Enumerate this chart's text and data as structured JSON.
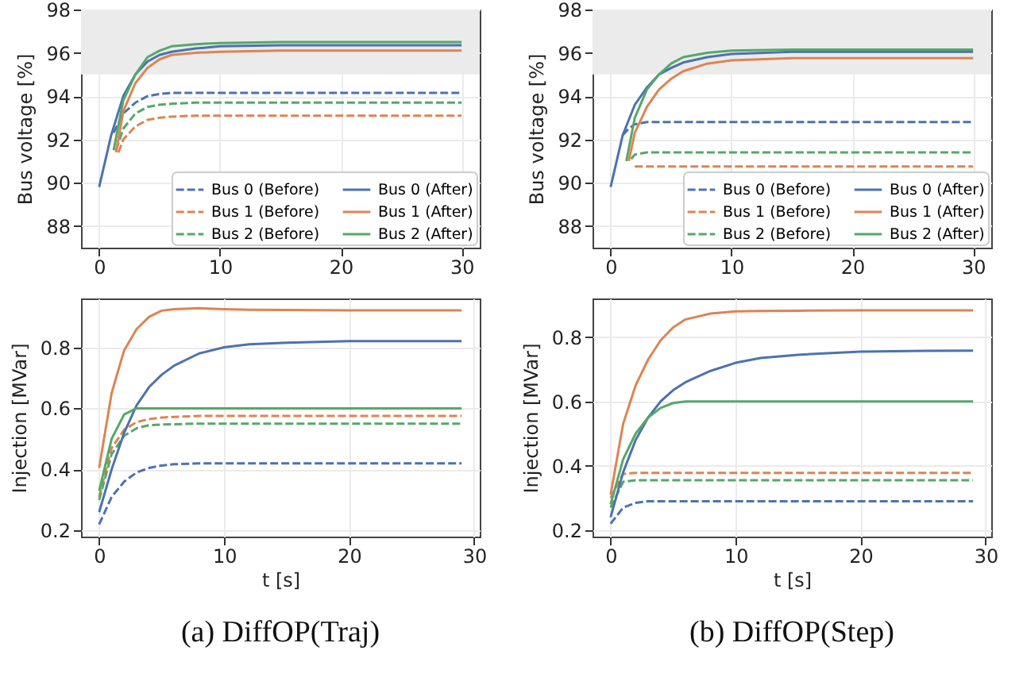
{
  "chart_data": [
    {
      "type": "line",
      "ylabel": "Bus voltage [%]",
      "xlim": [
        -1.5,
        31.5
      ],
      "xticks": [
        0,
        10,
        20,
        30
      ],
      "ylim": [
        87,
        98
      ],
      "yticks": [
        88,
        90,
        92,
        94,
        96,
        98
      ],
      "grid": true,
      "legend": "bottom right",
      "bands": [
        {
          "axis": "y",
          "from": 95,
          "to": 98,
          "color": "#ebebeb"
        }
      ],
      "series": [
        {
          "name": "Bus 0 (Before)",
          "color": "#4c72b0",
          "line_style": "dashed",
          "x": [
            1.2,
            2,
            3,
            4,
            5,
            6,
            8,
            10,
            15,
            20,
            25,
            30
          ],
          "values": [
            92.3,
            93.2,
            93.7,
            94.0,
            94.1,
            94.15,
            94.15,
            94.15,
            94.15,
            94.15,
            94.15,
            94.15
          ]
        },
        {
          "name": "Bus 1 (Before)",
          "color": "#dd8452",
          "line_style": "dashed",
          "x": [
            1.6,
            2,
            3,
            4,
            5,
            6,
            8,
            10,
            15,
            20,
            25,
            30
          ],
          "values": [
            91.4,
            92.0,
            92.6,
            92.9,
            93.0,
            93.05,
            93.1,
            93.1,
            93.1,
            93.1,
            93.1,
            93.1
          ]
        },
        {
          "name": "Bus 2 (Before)",
          "color": "#55a868",
          "line_style": "dashed",
          "x": [
            1.4,
            2,
            3,
            4,
            5,
            6,
            8,
            10,
            15,
            20,
            25,
            30
          ],
          "values": [
            91.5,
            92.5,
            93.2,
            93.5,
            93.6,
            93.65,
            93.7,
            93.7,
            93.7,
            93.7,
            93.7,
            93.7
          ]
        },
        {
          "name": "Bus 0 (After)",
          "color": "#4c72b0",
          "line_style": "solid",
          "x": [
            0,
            1,
            2,
            3,
            4,
            5,
            6,
            8,
            10,
            15,
            20,
            25,
            30
          ],
          "values": [
            89.8,
            92.2,
            94.0,
            95.0,
            95.6,
            95.9,
            96.05,
            96.2,
            96.3,
            96.35,
            96.35,
            96.35,
            96.35
          ]
        },
        {
          "name": "Bus 1 (After)",
          "color": "#dd8452",
          "line_style": "solid",
          "x": [
            1.4,
            2,
            3,
            4,
            5,
            6,
            8,
            10,
            15,
            20,
            25,
            30
          ],
          "values": [
            91.4,
            93.3,
            94.6,
            95.3,
            95.7,
            95.9,
            96.0,
            96.05,
            96.1,
            96.1,
            96.1,
            96.1
          ]
        },
        {
          "name": "Bus 2 (After)",
          "color": "#55a868",
          "line_style": "solid",
          "x": [
            1.2,
            2,
            3,
            4,
            5,
            6,
            8,
            10,
            15,
            20,
            25,
            30
          ],
          "values": [
            91.5,
            93.8,
            95.0,
            95.8,
            96.1,
            96.3,
            96.4,
            96.45,
            96.5,
            96.5,
            96.5,
            96.5
          ]
        }
      ]
    },
    {
      "type": "line",
      "ylabel": "Bus voltage [%]",
      "xlim": [
        -1.5,
        31.5
      ],
      "xticks": [
        0,
        10,
        20,
        30
      ],
      "ylim": [
        87,
        98
      ],
      "yticks": [
        88,
        90,
        92,
        94,
        96,
        98
      ],
      "grid": true,
      "legend": "bottom right",
      "bands": [
        {
          "axis": "y",
          "from": 95,
          "to": 98,
          "color": "#ebebeb"
        }
      ],
      "series": [
        {
          "name": "Bus 0 (Before)",
          "color": "#4c72b0",
          "line_style": "dashed",
          "x": [
            1,
            1.5,
            2,
            3,
            4,
            6,
            8,
            10,
            15,
            20,
            25,
            30
          ],
          "values": [
            92.2,
            92.5,
            92.7,
            92.8,
            92.8,
            92.8,
            92.8,
            92.8,
            92.8,
            92.8,
            92.8,
            92.8
          ]
        },
        {
          "name": "Bus 1 (Before)",
          "color": "#dd8452",
          "line_style": "dashed",
          "x": [
            2,
            3,
            4,
            6,
            8,
            10,
            15,
            20,
            25,
            30
          ],
          "values": [
            90.75,
            90.75,
            90.75,
            90.75,
            90.75,
            90.75,
            90.75,
            90.75,
            90.75,
            90.75
          ]
        },
        {
          "name": "Bus 2 (Before)",
          "color": "#55a868",
          "line_style": "dashed",
          "x": [
            1.7,
            2,
            3,
            4,
            6,
            8,
            10,
            15,
            20,
            25,
            30
          ],
          "values": [
            91.1,
            91.3,
            91.4,
            91.4,
            91.4,
            91.4,
            91.4,
            91.4,
            91.4,
            91.4,
            91.4
          ]
        },
        {
          "name": "Bus 0 (After)",
          "color": "#4c72b0",
          "line_style": "solid",
          "x": [
            0,
            1,
            2,
            3,
            4,
            5,
            6,
            8,
            10,
            15,
            20,
            25,
            30
          ],
          "values": [
            89.8,
            92.2,
            93.6,
            94.4,
            95.0,
            95.3,
            95.55,
            95.8,
            95.95,
            96.05,
            96.05,
            96.05,
            96.05
          ]
        },
        {
          "name": "Bus 1 (After)",
          "color": "#dd8452",
          "line_style": "solid",
          "x": [
            1.5,
            2,
            3,
            4,
            5,
            6,
            8,
            10,
            15,
            20,
            25,
            30
          ],
          "values": [
            91.0,
            92.3,
            93.5,
            94.3,
            94.8,
            95.15,
            95.5,
            95.65,
            95.75,
            95.75,
            95.75,
            95.75
          ]
        },
        {
          "name": "Bus 2 (After)",
          "color": "#55a868",
          "line_style": "solid",
          "x": [
            1.3,
            2,
            3,
            4,
            5,
            6,
            8,
            10,
            15,
            20,
            25,
            30
          ],
          "values": [
            91.0,
            93.0,
            94.3,
            95.0,
            95.5,
            95.8,
            96.0,
            96.1,
            96.15,
            96.15,
            96.15,
            96.15
          ]
        }
      ]
    },
    {
      "type": "line",
      "xlabel": "t [s]",
      "ylabel": "Injection [MVar]",
      "xlim": [
        -1.45,
        30.45
      ],
      "xticks": [
        0,
        10,
        20,
        30
      ],
      "ylim": [
        0.18,
        0.96
      ],
      "yticks": [
        0.2,
        0.4,
        0.6,
        0.8
      ],
      "grid": true,
      "annotations": [
        "(a) DiffOP(Traj)"
      ],
      "x": [
        0,
        1,
        2,
        3,
        4,
        5,
        6,
        8,
        10,
        12,
        15,
        20,
        25,
        29
      ],
      "series": [
        {
          "color": "#4c72b0",
          "line_style": "dashed",
          "values": [
            0.22,
            0.31,
            0.36,
            0.39,
            0.405,
            0.413,
            0.417,
            0.42,
            0.42,
            0.42,
            0.42,
            0.42,
            0.42,
            0.42
          ]
        },
        {
          "color": "#dd8452",
          "line_style": "dashed",
          "values": [
            0.31,
            0.47,
            0.53,
            0.555,
            0.565,
            0.57,
            0.572,
            0.575,
            0.575,
            0.575,
            0.575,
            0.575,
            0.575,
            0.575
          ]
        },
        {
          "color": "#55a868",
          "line_style": "dashed",
          "values": [
            0.3,
            0.45,
            0.51,
            0.535,
            0.545,
            0.547,
            0.548,
            0.55,
            0.55,
            0.55,
            0.55,
            0.55,
            0.55,
            0.55
          ]
        },
        {
          "color": "#4c72b0",
          "line_style": "solid",
          "values": [
            0.26,
            0.4,
            0.52,
            0.61,
            0.67,
            0.71,
            0.74,
            0.78,
            0.8,
            0.81,
            0.815,
            0.82,
            0.82,
            0.82
          ]
        },
        {
          "color": "#dd8452",
          "line_style": "solid",
          "values": [
            0.405,
            0.65,
            0.79,
            0.86,
            0.9,
            0.92,
            0.925,
            0.928,
            0.925,
            0.923,
            0.922,
            0.921,
            0.921,
            0.921
          ]
        },
        {
          "color": "#55a868",
          "line_style": "solid",
          "values": [
            0.33,
            0.5,
            0.58,
            0.6,
            0.6,
            0.6,
            0.6,
            0.6,
            0.6,
            0.6,
            0.6,
            0.6,
            0.6,
            0.6
          ]
        }
      ]
    },
    {
      "type": "line",
      "xlabel": "t [s]",
      "ylabel": "Injection [MVar]",
      "xlim": [
        -1.45,
        30.45
      ],
      "xticks": [
        0,
        10,
        20,
        30
      ],
      "ylim": [
        0.18,
        0.92
      ],
      "yticks": [
        0.2,
        0.4,
        0.6,
        0.8
      ],
      "grid": true,
      "annotations": [
        "(b) DiffOP(Step)"
      ],
      "x": [
        0,
        1,
        2,
        3,
        4,
        5,
        6,
        8,
        10,
        12,
        15,
        20,
        25,
        29
      ],
      "series": [
        {
          "color": "#4c72b0",
          "line_style": "dashed",
          "values": [
            0.22,
            0.27,
            0.285,
            0.29,
            0.29,
            0.29,
            0.29,
            0.29,
            0.29,
            0.29,
            0.29,
            0.29,
            0.29,
            0.29
          ]
        },
        {
          "color": "#dd8452",
          "line_style": "dashed",
          "values": [
            0.3,
            0.375,
            0.378,
            0.378,
            0.378,
            0.378,
            0.378,
            0.378,
            0.378,
            0.378,
            0.378,
            0.378,
            0.378,
            0.378
          ]
        },
        {
          "color": "#55a868",
          "line_style": "dashed",
          "values": [
            0.27,
            0.35,
            0.355,
            0.355,
            0.355,
            0.355,
            0.355,
            0.355,
            0.355,
            0.355,
            0.355,
            0.355,
            0.355,
            0.355
          ]
        },
        {
          "color": "#4c72b0",
          "line_style": "solid",
          "values": [
            0.24,
            0.38,
            0.48,
            0.55,
            0.6,
            0.635,
            0.66,
            0.695,
            0.72,
            0.735,
            0.745,
            0.755,
            0.757,
            0.758
          ]
        },
        {
          "color": "#dd8452",
          "line_style": "solid",
          "values": [
            0.31,
            0.53,
            0.65,
            0.73,
            0.79,
            0.83,
            0.855,
            0.873,
            0.88,
            0.881,
            0.882,
            0.883,
            0.883,
            0.883
          ]
        },
        {
          "color": "#55a868",
          "line_style": "solid",
          "values": [
            0.28,
            0.42,
            0.5,
            0.55,
            0.58,
            0.595,
            0.6,
            0.6,
            0.6,
            0.6,
            0.6,
            0.6,
            0.6,
            0.6
          ]
        }
      ]
    }
  ]
}
